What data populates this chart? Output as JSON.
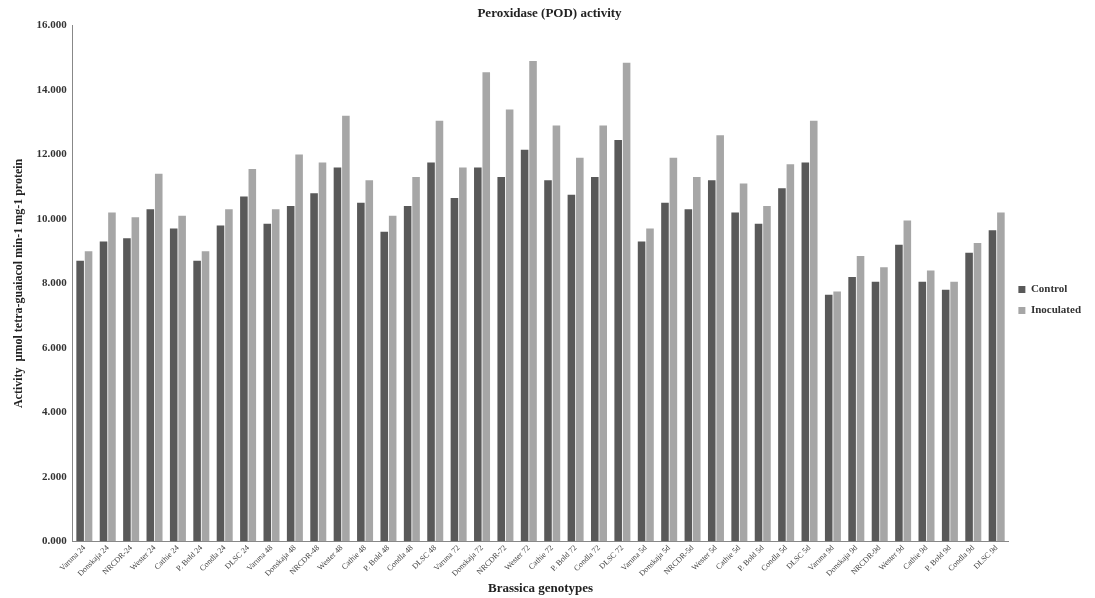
{
  "chart_data": {
    "type": "bar",
    "title": "Peroxidase (POD) activity",
    "xlabel": "Brassica genotypes",
    "ylabel": "Activity  µmol tetra-guaiacol min-1 mg-1 protein",
    "categories": [
      "Varuna 24",
      "Donskaja 24",
      "NRCDR-24",
      "Wester 24",
      "Cathie 24",
      "P. Bold 24",
      "Condla 24",
      "DLSC 24",
      "Varuna 48",
      "Donskaja 48",
      "NRCDR-48",
      "Wester 48",
      "Cathie 48",
      "P. Bold 48",
      "Condla 48",
      "DLSC 48",
      "Varuna 72",
      "Donskaja 72",
      "NRCDR-72",
      "Wester 72",
      "Cathie 72",
      "P. Bold 72",
      "Condla 72",
      "DLSC 72",
      "Varuna 5d",
      "Donskaja 5d",
      "NRCDR-5d",
      "Wester 5d",
      "Cathie 5d",
      "P. Bold 5d",
      "Condla 5d",
      "DLSC 5d",
      "Varuna 9d",
      "Donskaja 9d",
      "NRCDR-9d",
      "Wester 9d",
      "Cathie 9d",
      "P. Bold 9d",
      "Condla 9d",
      "DLSC 9d"
    ],
    "series": [
      {
        "name": "Control",
        "color": "#595959",
        "values": [
          8.7,
          9.3,
          9.4,
          10.3,
          9.7,
          8.7,
          9.8,
          10.7,
          9.85,
          10.4,
          10.8,
          11.6,
          10.5,
          9.6,
          10.4,
          11.75,
          10.65,
          11.6,
          11.3,
          12.15,
          11.2,
          10.75,
          11.3,
          12.45,
          9.3,
          10.5,
          10.3,
          11.2,
          10.2,
          9.85,
          10.95,
          11.75,
          7.65,
          8.2,
          8.05,
          9.2,
          8.05,
          7.8,
          8.95,
          9.65
        ]
      },
      {
        "name": "Inoculated",
        "color": "#a6a6a6",
        "values": [
          9.0,
          10.2,
          10.05,
          11.4,
          10.1,
          9.0,
          10.3,
          11.55,
          10.3,
          12.0,
          11.75,
          13.2,
          11.2,
          10.1,
          11.3,
          13.05,
          11.6,
          14.55,
          13.4,
          14.9,
          12.9,
          11.9,
          12.9,
          14.85,
          9.7,
          11.9,
          11.3,
          12.6,
          11.1,
          10.4,
          11.7,
          13.05,
          7.75,
          8.85,
          8.5,
          9.95,
          8.4,
          8.05,
          9.25,
          10.2
        ]
      }
    ],
    "ylim": [
      0,
      16
    ],
    "yticks": [
      {
        "value": 0,
        "label": "0.000"
      },
      {
        "value": 2,
        "label": "2.000"
      },
      {
        "value": 4,
        "label": "4.000"
      },
      {
        "value": 6,
        "label": "6.000"
      },
      {
        "value": 8,
        "label": "8.000"
      },
      {
        "value": 10,
        "label": "10.000"
      },
      {
        "value": 12,
        "label": "12.000"
      },
      {
        "value": 14,
        "label": "14.000"
      },
      {
        "value": 16,
        "label": "16.000"
      }
    ],
    "grid": false,
    "legend": "right"
  }
}
